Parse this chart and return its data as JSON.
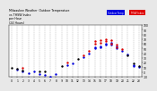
{
  "title": "Milwaukee Weather  Outdoor Temperature\nvs THSW Index\nper Hour\n(24 Hours)",
  "background_color": "#e8e8e8",
  "plot_bg_color": "#ffffff",
  "legend_blue_label": "Outdoor Temp",
  "legend_red_label": "THSW Index",
  "legend_color_blue": "#0000dd",
  "legend_color_red": "#dd0000",
  "x_ticks": [
    0,
    1,
    2,
    3,
    4,
    5,
    6,
    7,
    8,
    9,
    10,
    11,
    12,
    13,
    14,
    15,
    16,
    17,
    18,
    19,
    20,
    21,
    22,
    23
  ],
  "ylim": [
    -10,
    100
  ],
  "xlim": [
    -0.5,
    23.5
  ],
  "y_tick_vals": [
    -10,
    0,
    10,
    20,
    30,
    40,
    50,
    60,
    70,
    80,
    90,
    100
  ],
  "y_tick_labels": [
    "-10",
    "0",
    "10",
    "20",
    "30",
    "40",
    "50",
    "60",
    "70",
    "80",
    "90",
    "100"
  ],
  "blue_points": [
    [
      1,
      5
    ],
    [
      2,
      2
    ],
    [
      3,
      -2
    ],
    [
      4,
      2
    ],
    [
      5,
      -5
    ],
    [
      6,
      -7
    ],
    [
      7,
      -10
    ],
    [
      8,
      -5
    ],
    [
      10,
      15
    ],
    [
      11,
      18
    ],
    [
      13,
      32
    ],
    [
      14,
      40
    ],
    [
      15,
      50
    ],
    [
      15,
      52
    ],
    [
      16,
      55
    ],
    [
      16,
      52
    ],
    [
      17,
      60
    ],
    [
      17,
      58
    ],
    [
      18,
      62
    ],
    [
      18,
      58
    ],
    [
      19,
      55
    ],
    [
      19,
      50
    ],
    [
      20,
      45
    ],
    [
      21,
      38
    ],
    [
      22,
      15
    ],
    [
      22,
      12
    ],
    [
      23,
      10
    ]
  ],
  "red_points": [
    [
      2,
      8
    ],
    [
      10,
      20
    ],
    [
      13,
      35
    ],
    [
      14,
      45
    ],
    [
      15,
      60
    ],
    [
      15,
      65
    ],
    [
      16,
      68
    ],
    [
      16,
      62
    ],
    [
      17,
      70
    ],
    [
      17,
      65
    ],
    [
      18,
      68
    ],
    [
      18,
      60
    ],
    [
      19,
      58
    ],
    [
      19,
      52
    ],
    [
      20,
      48
    ]
  ],
  "black_points": [
    [
      0,
      8
    ],
    [
      1,
      6
    ],
    [
      2,
      4
    ],
    [
      5,
      2
    ],
    [
      6,
      1
    ],
    [
      9,
      12
    ],
    [
      12,
      28
    ],
    [
      21,
      35
    ],
    [
      22,
      18
    ],
    [
      23,
      12
    ]
  ],
  "grid_color": "#aaaaaa",
  "dot_size": 3
}
